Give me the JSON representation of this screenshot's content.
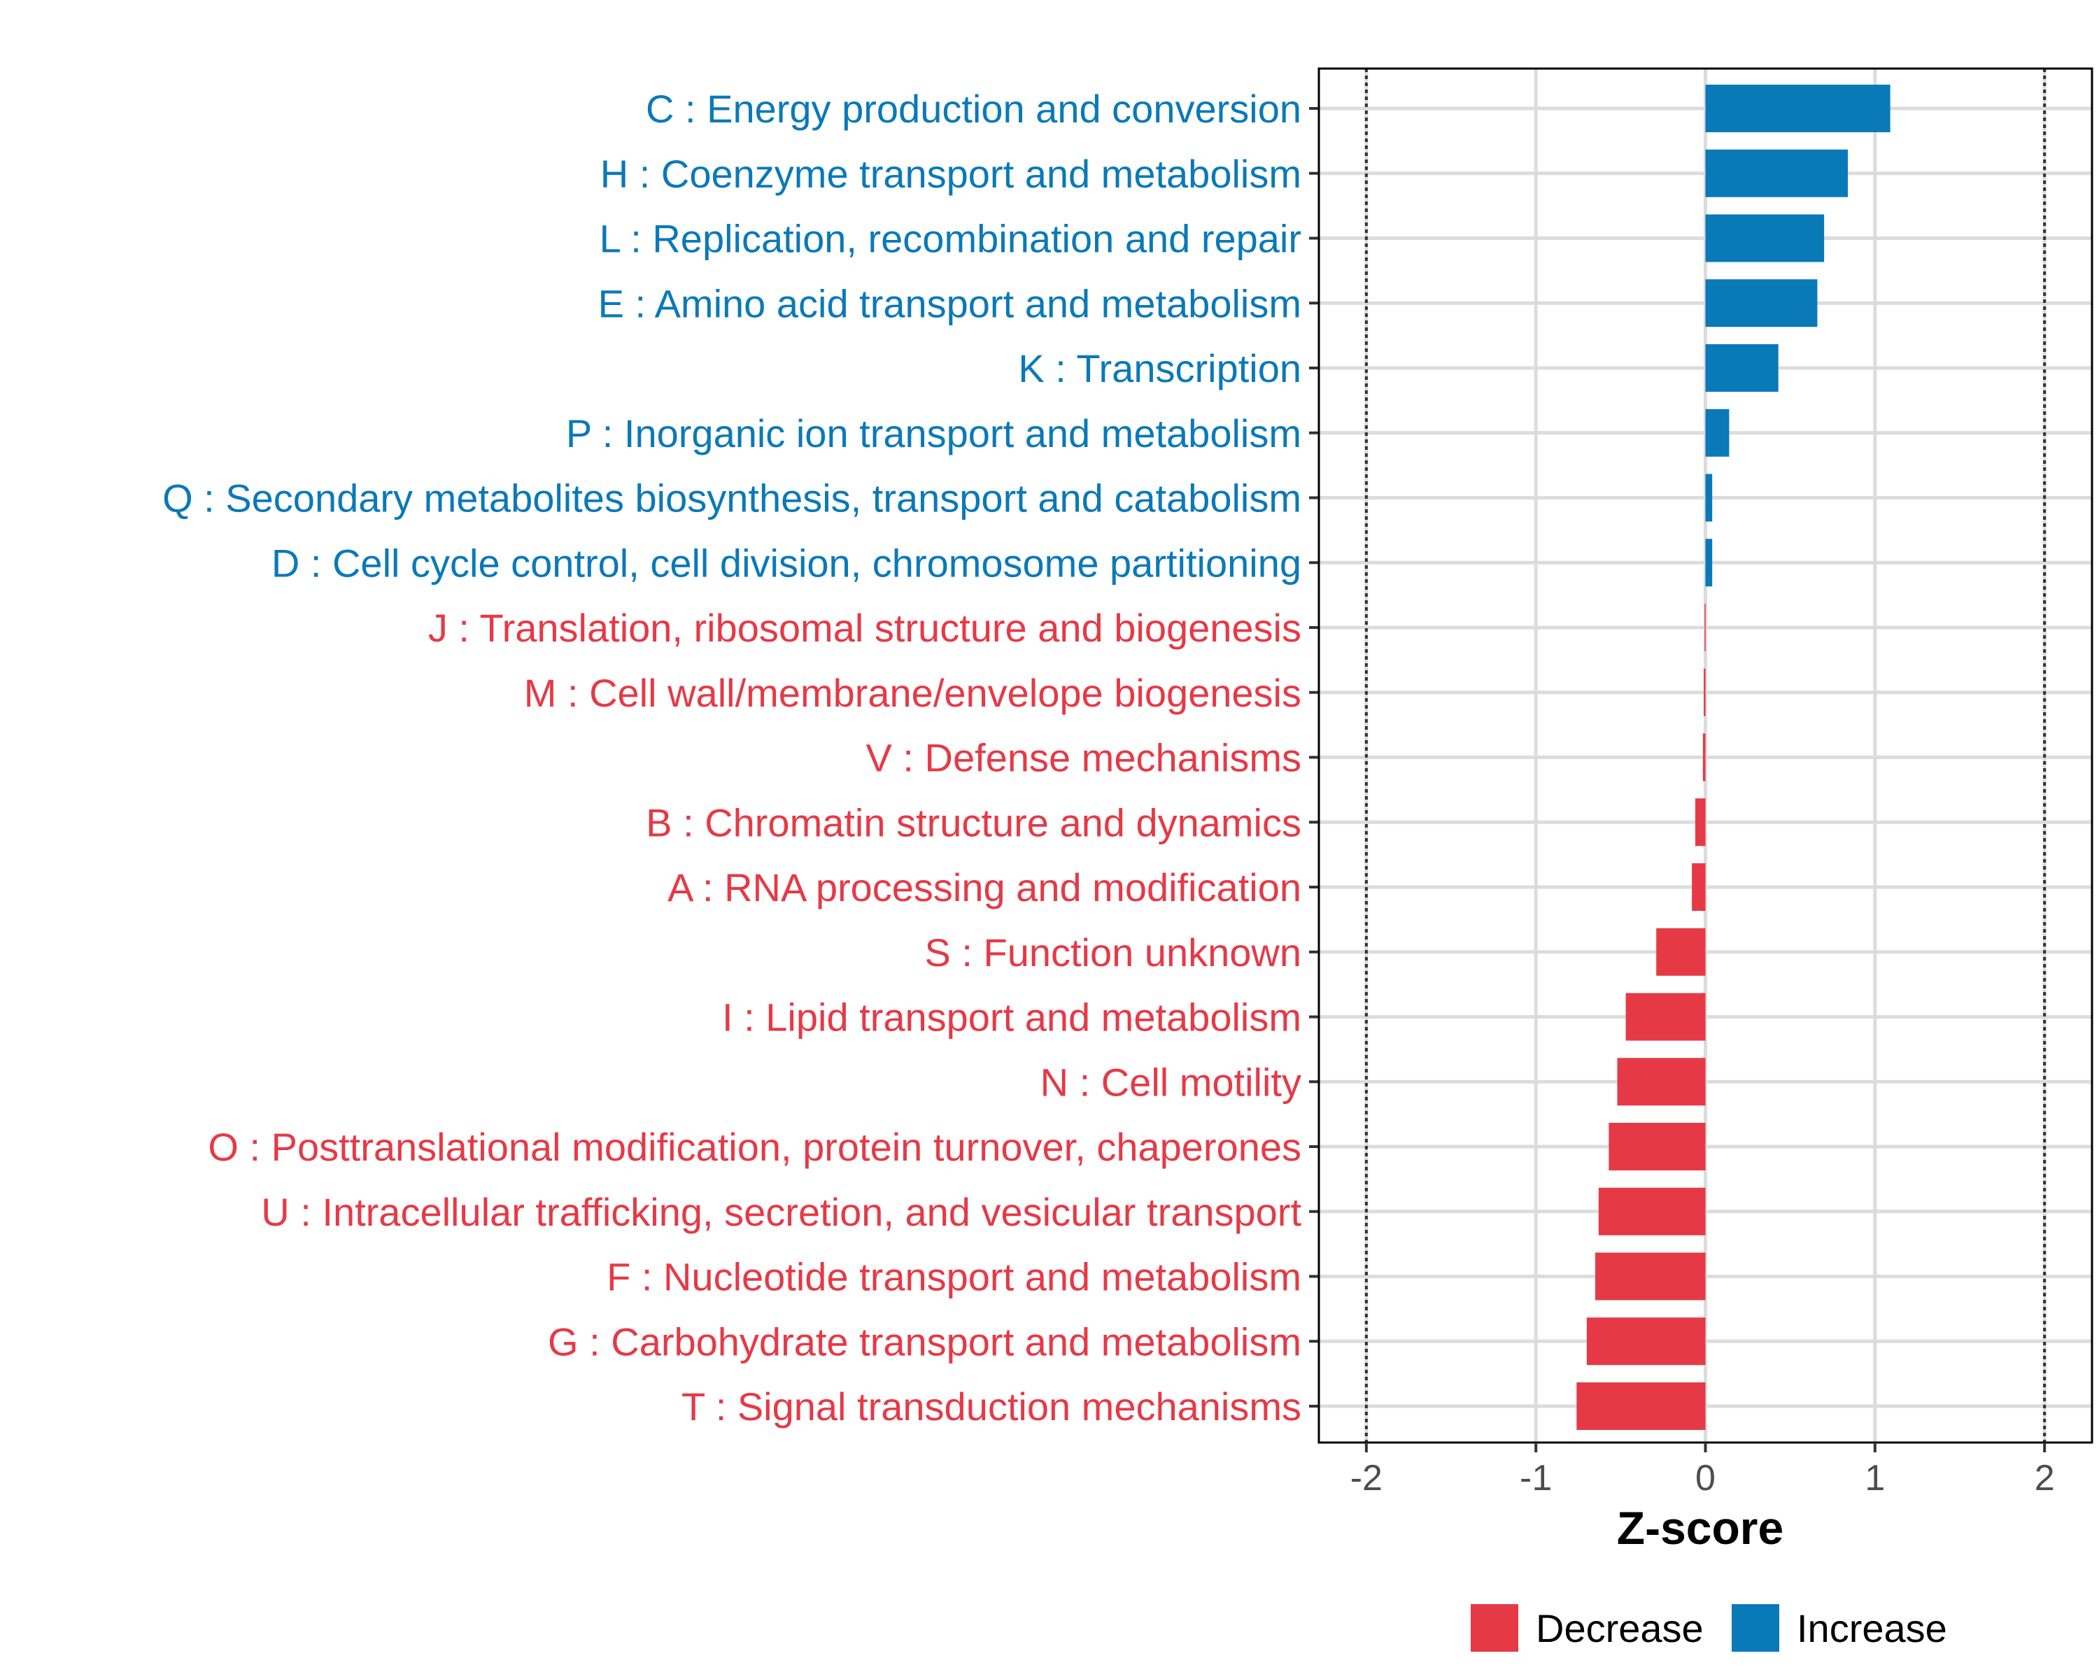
{
  "chart_data": {
    "type": "bar",
    "orientation": "horizontal",
    "xlabel": "Z-score",
    "xlim": [
      -2.28,
      2.28
    ],
    "xticks": [
      -2,
      -1,
      0,
      1,
      2
    ],
    "xtick_labels": [
      "-2",
      "-1",
      "0",
      "1",
      "2"
    ],
    "reference_lines": [
      -2,
      2
    ],
    "grid": true,
    "colors": {
      "Decrease": "#E63946",
      "Increase": "#0A79B8"
    },
    "legend": {
      "position": "bottom",
      "entries": [
        "Decrease",
        "Increase"
      ]
    },
    "categories": [
      "C : Energy production and conversion",
      "H : Coenzyme transport and metabolism",
      "L : Replication, recombination and repair",
      "E : Amino acid transport and metabolism",
      "K : Transcription",
      "P : Inorganic ion transport and metabolism",
      "Q : Secondary metabolites biosynthesis, transport and catabolism",
      "D : Cell cycle control, cell division, chromosome partitioning",
      "J : Translation, ribosomal structure and biogenesis",
      "M : Cell wall/membrane/envelope biogenesis",
      "V : Defense mechanisms",
      "B : Chromatin structure and dynamics",
      "A : RNA processing and modification",
      "S : Function unknown",
      "I : Lipid transport and metabolism",
      "N : Cell motility",
      "O : Posttranslational modification, protein turnover, chaperones",
      "U : Intracellular trafficking, secretion, and vesicular transport",
      "F : Nucleotide transport and metabolism",
      "G : Carbohydrate transport and metabolism",
      "T : Signal transduction mechanisms"
    ],
    "values": [
      1.09,
      0.84,
      0.7,
      0.66,
      0.43,
      0.14,
      0.04,
      0.04,
      -0.005,
      -0.01,
      -0.015,
      -0.06,
      -0.08,
      -0.29,
      -0.47,
      -0.52,
      -0.57,
      -0.63,
      -0.65,
      -0.7,
      -0.76
    ],
    "groups": [
      "Increase",
      "Increase",
      "Increase",
      "Increase",
      "Increase",
      "Increase",
      "Increase",
      "Increase",
      "Decrease",
      "Decrease",
      "Decrease",
      "Decrease",
      "Decrease",
      "Decrease",
      "Decrease",
      "Decrease",
      "Decrease",
      "Decrease",
      "Decrease",
      "Decrease",
      "Decrease"
    ]
  }
}
